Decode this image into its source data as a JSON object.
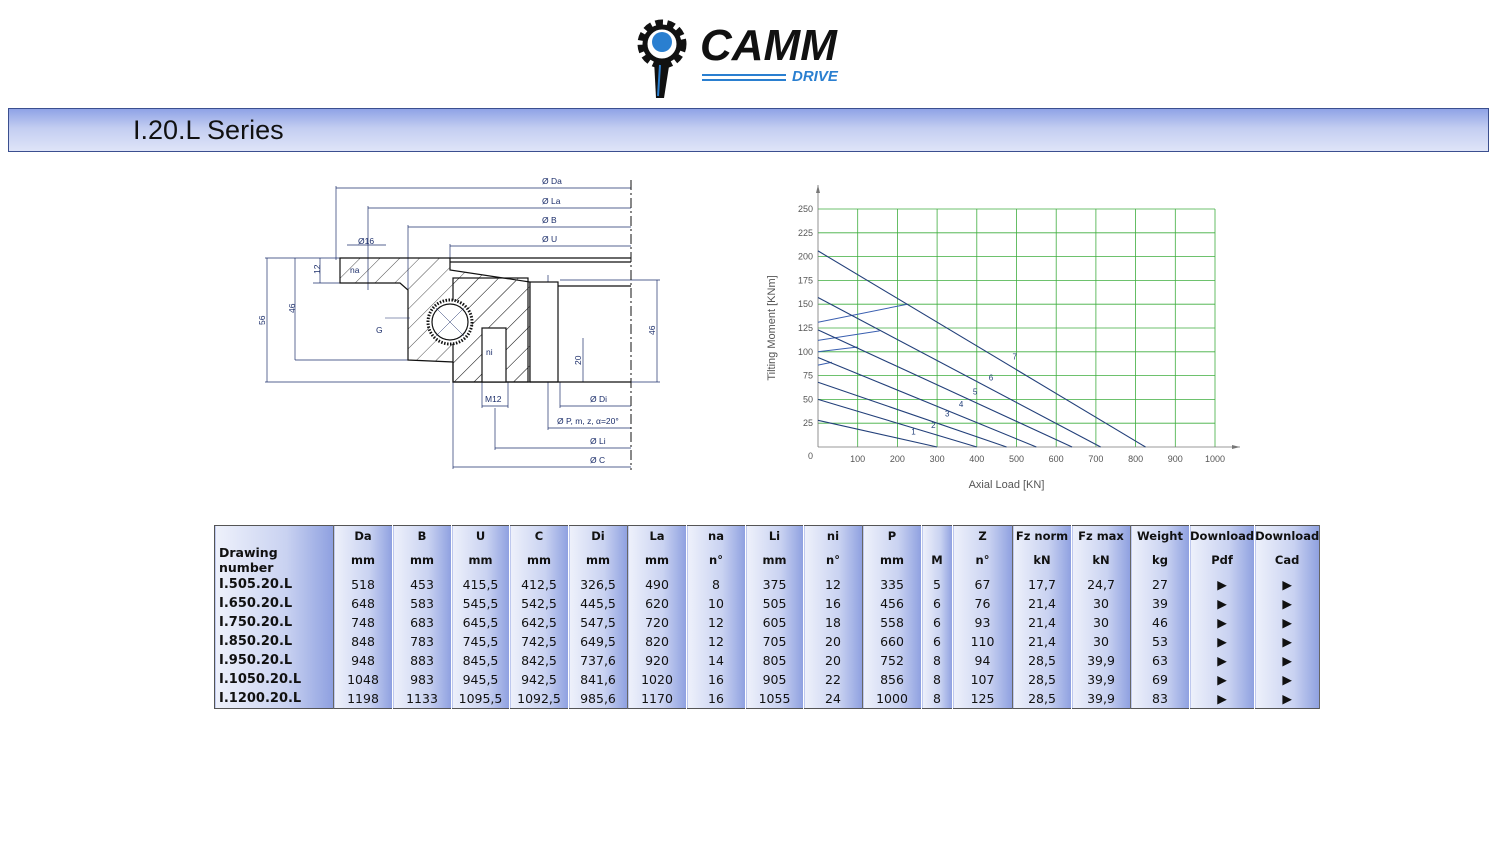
{
  "logo": {
    "brand": "CAMM",
    "sub": "DRIVE",
    "colors": {
      "black": "#111111",
      "blue": "#2a7fd0"
    }
  },
  "banner": {
    "title": "I.20.L Series"
  },
  "drawing": {
    "labels": {
      "da": "Ø Da",
      "la": "Ø La",
      "b": "Ø B",
      "u": "Ø U",
      "d16": "Ø16",
      "na": "na",
      "h12": "12",
      "h56": "56",
      "h46a": "46",
      "g": "G",
      "ni": "ni",
      "h20": "20",
      "h46b": "46",
      "m12": "M12",
      "di": "Ø Di",
      "p": "Ø P, m, z, α=20°",
      "li": "Ø Li",
      "c": "Ø C"
    }
  },
  "chart_data": {
    "type": "line",
    "xlabel": "Axial Load  [KN]",
    "ylabel": "Tilting Moment  [KNm]",
    "xlim": [
      0,
      1000
    ],
    "ylim": [
      0,
      250
    ],
    "xticks": [
      100,
      200,
      300,
      400,
      500,
      600,
      700,
      800,
      900,
      1000
    ],
    "yticks": [
      0,
      25,
      50,
      75,
      100,
      125,
      150,
      175,
      200,
      225,
      250
    ],
    "grid": true,
    "colors": {
      "grid": "#3fae3f",
      "line": "#23407a"
    },
    "series": [
      {
        "name": "1",
        "points": [
          [
            0,
            28
          ],
          [
            300,
            0
          ]
        ],
        "label_at": [
          235,
          13
        ]
      },
      {
        "name": "2",
        "points": [
          [
            0,
            50
          ],
          [
            400,
            0
          ]
        ],
        "label_at": [
          285,
          20
        ]
      },
      {
        "name": "3",
        "points": [
          [
            0,
            68
          ],
          [
            475,
            0
          ]
        ],
        "label_at": [
          320,
          32
        ]
      },
      {
        "name": "4",
        "points": [
          [
            0,
            94
          ],
          [
            550,
            0
          ]
        ],
        "label_at": [
          355,
          42
        ]
      },
      {
        "name": "5",
        "points": [
          [
            0,
            123
          ],
          [
            640,
            0
          ]
        ],
        "label_at": [
          390,
          55
        ]
      },
      {
        "name": "6",
        "points": [
          [
            0,
            157
          ],
          [
            712,
            0
          ]
        ],
        "label_at": [
          430,
          70
        ]
      },
      {
        "name": "7",
        "points": [
          [
            0,
            206
          ],
          [
            825,
            0
          ]
        ],
        "label_at": [
          490,
          92
        ]
      }
    ],
    "bolt_lines": [
      [
        [
          0,
          131
        ],
        [
          225,
          150
        ]
      ],
      [
        [
          0,
          112
        ],
        [
          155,
          122
        ]
      ],
      [
        [
          0,
          100
        ],
        [
          100,
          105
        ]
      ],
      [
        [
          0,
          86
        ],
        [
          35,
          89
        ]
      ]
    ]
  },
  "table": {
    "header1": [
      "",
      "Da",
      "B",
      "U",
      "C",
      "Di",
      "La",
      "na",
      "Li",
      "ni",
      "P",
      "",
      "Z",
      "Fz norm",
      "Fz max",
      "Weight",
      "Download",
      "Download"
    ],
    "header2": [
      "Drawing number",
      "mm",
      "mm",
      "mm",
      "mm",
      "mm",
      "mm",
      "n°",
      "mm",
      "n°",
      "mm",
      "M",
      "n°",
      "kN",
      "kN",
      "kg",
      "Pdf",
      "Cad"
    ],
    "rows": [
      [
        "I.505.20.L",
        "518",
        "453",
        "415,5",
        "412,5",
        "326,5",
        "490",
        "8",
        "375",
        "12",
        "335",
        "5",
        "67",
        "17,7",
        "24,7",
        "27",
        "▶",
        "▶"
      ],
      [
        "I.650.20.L",
        "648",
        "583",
        "545,5",
        "542,5",
        "445,5",
        "620",
        "10",
        "505",
        "16",
        "456",
        "6",
        "76",
        "21,4",
        "30",
        "39",
        "▶",
        "▶"
      ],
      [
        "I.750.20.L",
        "748",
        "683",
        "645,5",
        "642,5",
        "547,5",
        "720",
        "12",
        "605",
        "18",
        "558",
        "6",
        "93",
        "21,4",
        "30",
        "46",
        "▶",
        "▶"
      ],
      [
        "I.850.20.L",
        "848",
        "783",
        "745,5",
        "742,5",
        "649,5",
        "820",
        "12",
        "705",
        "20",
        "660",
        "6",
        "110",
        "21,4",
        "30",
        "53",
        "▶",
        "▶"
      ],
      [
        "I.950.20.L",
        "948",
        "883",
        "845,5",
        "842,5",
        "737,6",
        "920",
        "14",
        "805",
        "20",
        "752",
        "8",
        "94",
        "28,5",
        "39,9",
        "63",
        "▶",
        "▶"
      ],
      [
        "I.1050.20.L",
        "1048",
        "983",
        "945,5",
        "942,5",
        "841,6",
        "1020",
        "16",
        "905",
        "22",
        "856",
        "8",
        "107",
        "28,5",
        "39,9",
        "69",
        "▶",
        "▶"
      ],
      [
        "I.1200.20.L",
        "1198",
        "1133",
        "1095,5",
        "1092,5",
        "985,6",
        "1170",
        "16",
        "1055",
        "24",
        "1000",
        "8",
        "125",
        "28,5",
        "39,9",
        "83",
        "▶",
        "▶"
      ]
    ]
  }
}
